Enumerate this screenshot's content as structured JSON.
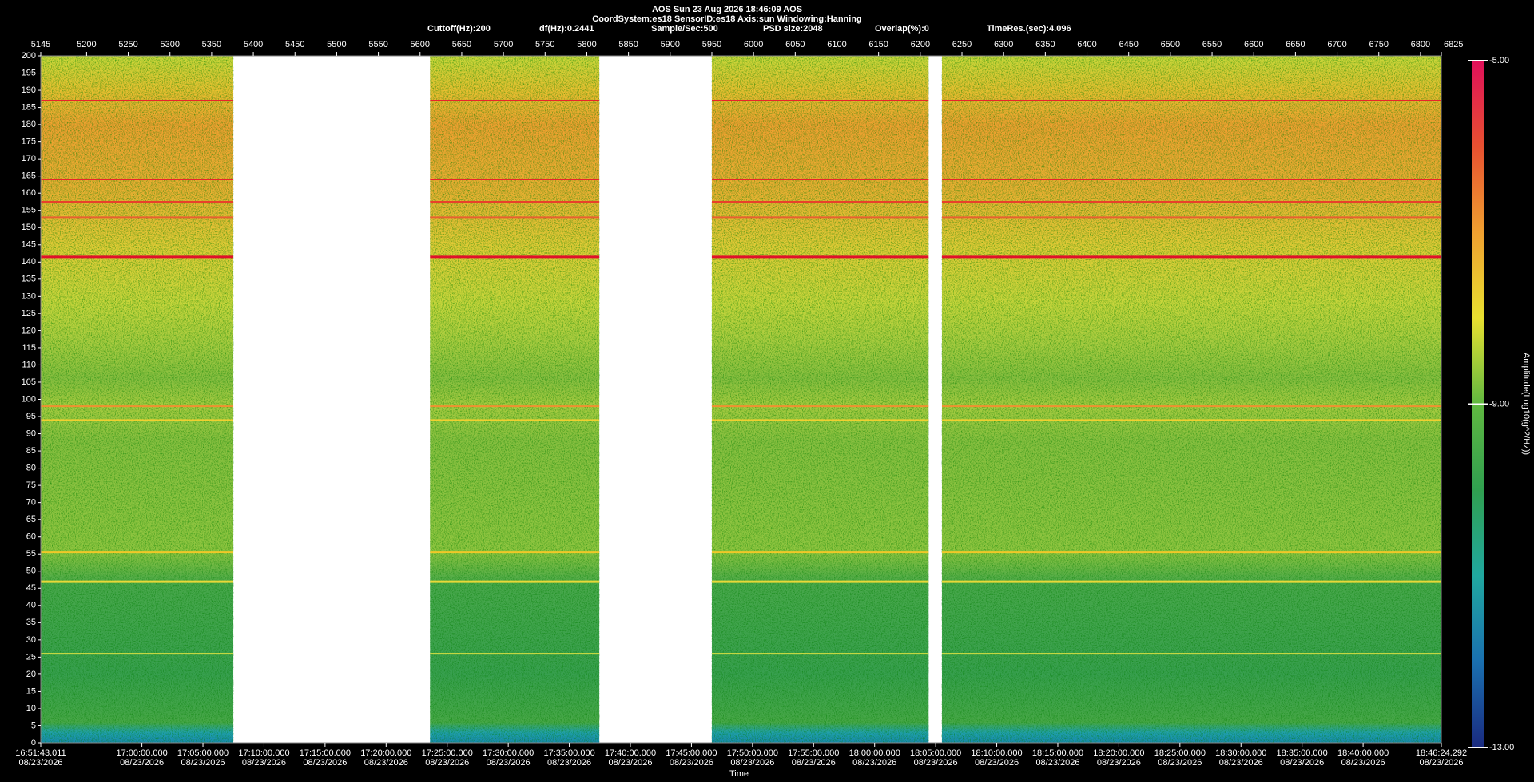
{
  "chart_data": {
    "type": "spectrogram",
    "title": "AOS  Sun 23 Aug 2026 18:46:09  AOS",
    "subtitle": "CoordSystem:es18   SensorID:es18   Axis:sun   Windowing:Hanning",
    "info": [
      "Cuttoff(Hz):200",
      "df(Hz):0.2441",
      "Sample/Sec:500",
      "PSD size:2048",
      "Overlap(%):0",
      "TimeRes.(sec):4.096"
    ],
    "xlabel": "Time",
    "colorbar_label": "Amplitude(Log10(g^2/Hz))",
    "xlim": [
      5145,
      6825
    ],
    "xticks": [
      5145,
      5200,
      5250,
      5300,
      5350,
      5400,
      5450,
      5500,
      5550,
      5600,
      5650,
      5700,
      5750,
      5800,
      5850,
      5900,
      5950,
      6000,
      6050,
      6100,
      6150,
      6200,
      6250,
      6300,
      6350,
      6400,
      6450,
      6500,
      6550,
      6600,
      6650,
      6700,
      6750,
      6800,
      6825
    ],
    "ylim": [
      0,
      200
    ],
    "yticks": [
      0,
      5,
      10,
      15,
      20,
      25,
      30,
      35,
      40,
      45,
      50,
      55,
      60,
      65,
      70,
      75,
      80,
      85,
      90,
      95,
      100,
      105,
      110,
      115,
      120,
      125,
      130,
      135,
      140,
      145,
      150,
      155,
      160,
      165,
      170,
      175,
      180,
      185,
      190,
      195,
      200
    ],
    "tlim": [
      60703.011,
      67584.292
    ],
    "time_ticks": [
      {
        "value": 60703.011,
        "label": "16:51:43.011",
        "date": "08/23/2026"
      },
      {
        "value": 61200,
        "label": "17:00:00.000",
        "date": "08/23/2026"
      },
      {
        "value": 61500,
        "label": "17:05:00.000",
        "date": "08/23/2026"
      },
      {
        "value": 61800,
        "label": "17:10:00.000",
        "date": "08/23/2026"
      },
      {
        "value": 62100,
        "label": "17:15:00.000",
        "date": "08/23/2026"
      },
      {
        "value": 62400,
        "label": "17:20:00.000",
        "date": "08/23/2026"
      },
      {
        "value": 62700,
        "label": "17:25:00.000",
        "date": "08/23/2026"
      },
      {
        "value": 63000,
        "label": "17:30:00.000",
        "date": "08/23/2026"
      },
      {
        "value": 63300,
        "label": "17:35:00.000",
        "date": "08/23/2026"
      },
      {
        "value": 63600,
        "label": "17:40:00.000",
        "date": "08/23/2026"
      },
      {
        "value": 63900,
        "label": "17:45:00.000",
        "date": "08/23/2026"
      },
      {
        "value": 64200,
        "label": "17:50:00.000",
        "date": "08/23/2026"
      },
      {
        "value": 64500,
        "label": "17:55:00.000",
        "date": "08/23/2026"
      },
      {
        "value": 64800,
        "label": "18:00:00.000",
        "date": "08/23/2026"
      },
      {
        "value": 65100,
        "label": "18:05:00.000",
        "date": "08/23/2026"
      },
      {
        "value": 65400,
        "label": "18:10:00.000",
        "date": "08/23/2026"
      },
      {
        "value": 65700,
        "label": "18:15:00.000",
        "date": "08/23/2026"
      },
      {
        "value": 66000,
        "label": "18:20:00.000",
        "date": "08/23/2026"
      },
      {
        "value": 66300,
        "label": "18:25:00.000",
        "date": "08/23/2026"
      },
      {
        "value": 66600,
        "label": "18:30:00.000",
        "date": "08/23/2026"
      },
      {
        "value": 66900,
        "label": "18:35:00.000",
        "date": "08/23/2026"
      },
      {
        "value": 67200,
        "label": "18:40:00.000",
        "date": "08/23/2026"
      },
      {
        "value": 67584.292,
        "label": "18:46:24.292",
        "date": "08/23/2026"
      }
    ],
    "segments": [
      {
        "start": 5145,
        "end": 5376
      },
      {
        "start": 5612,
        "end": 5815
      },
      {
        "start": 5950,
        "end": 6210
      },
      {
        "start": 6226,
        "end": 6825
      }
    ],
    "lines": [
      {
        "freq": 187,
        "color": "#e8242a"
      },
      {
        "freq": 164,
        "color": "#e8242a"
      },
      {
        "freq": 157.5,
        "color": "#e8402a"
      },
      {
        "freq": 153,
        "color": "#e86030"
      },
      {
        "freq": 141.5,
        "color": "#e0102a"
      },
      {
        "freq": 98,
        "color": "#f09030"
      },
      {
        "freq": 94,
        "color": "#f0d030"
      },
      {
        "freq": 55.5,
        "color": "#f0c828"
      },
      {
        "freq": 47,
        "color": "#e8d838"
      },
      {
        "freq": 26,
        "color": "#d8e040"
      }
    ],
    "clim": [
      -13,
      -5
    ],
    "cticks": [
      {
        "value": -5,
        "label": "-5.00"
      },
      {
        "value": -9,
        "label": "-9.00"
      },
      {
        "value": -13,
        "label": "-13.00"
      }
    ],
    "colormap": [
      "#1a2a80",
      "#1a70b0",
      "#20a8a0",
      "#30a050",
      "#60b840",
      "#e8e030",
      "#f0a030",
      "#e85030",
      "#e0105a"
    ]
  }
}
